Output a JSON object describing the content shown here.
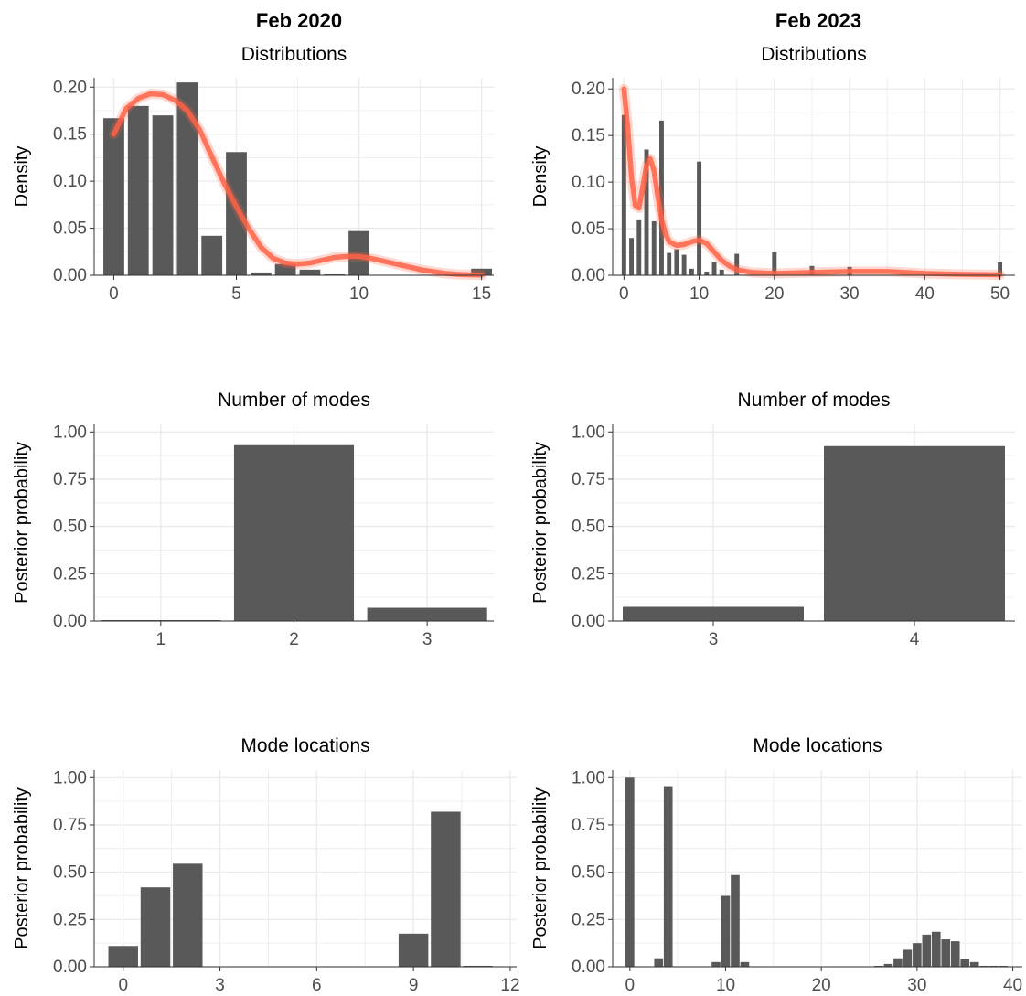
{
  "columns": [
    "Feb 2020",
    "Feb 2023"
  ],
  "colors": {
    "bar": "#595959",
    "curve": "#ff6347",
    "grid": "#ebebeb",
    "axis": "#333333"
  },
  "chart_data": [
    {
      "type": "bar",
      "title": "Distributions",
      "ylabel": "Density",
      "xlabel": "",
      "xlim": [
        -0.8,
        15.5
      ],
      "ylim": [
        0,
        0.21
      ],
      "xticks": [
        0,
        5,
        10,
        15
      ],
      "yticks": [
        0.0,
        0.05,
        0.1,
        0.15,
        0.2
      ],
      "ytick_labels": [
        "0.00",
        "0.05",
        "0.10",
        "0.15",
        "0.20"
      ],
      "bar_width": 0.85,
      "x": [
        0,
        1,
        2,
        3,
        4,
        5,
        6,
        7,
        8,
        9,
        10,
        15
      ],
      "values": [
        0.167,
        0.18,
        0.17,
        0.205,
        0.042,
        0.131,
        0.003,
        0.012,
        0.006,
        0.001,
        0.047,
        0.007
      ],
      "density_curve": {
        "style": "posterior draws (overlaid)",
        "x": [
          0,
          0.5,
          1,
          1.5,
          2,
          2.5,
          3,
          3.5,
          4,
          4.5,
          5,
          5.5,
          6,
          6.5,
          7,
          7.5,
          8,
          8.5,
          9,
          9.5,
          10,
          10.5,
          11,
          11.5,
          12,
          12.5,
          13,
          13.5,
          14,
          14.5,
          15
        ],
        "y": [
          0.15,
          0.177,
          0.188,
          0.193,
          0.192,
          0.186,
          0.175,
          0.155,
          0.126,
          0.098,
          0.073,
          0.05,
          0.03,
          0.018,
          0.013,
          0.012,
          0.013,
          0.016,
          0.019,
          0.02,
          0.02,
          0.018,
          0.015,
          0.012,
          0.009,
          0.006,
          0.004,
          0.002,
          0.001,
          0.0005,
          0.0002
        ]
      }
    },
    {
      "type": "bar",
      "title": "Distributions",
      "ylabel": "Density",
      "xlabel": "",
      "xlim": [
        -1.5,
        52
      ],
      "ylim": [
        0,
        0.212
      ],
      "xticks": [
        0,
        10,
        20,
        30,
        40,
        50
      ],
      "yticks": [
        0.0,
        0.05,
        0.1,
        0.15,
        0.2
      ],
      "ytick_labels": [
        "0.00",
        "0.05",
        "0.10",
        "0.15",
        "0.20"
      ],
      "bar_width": 0.6,
      "x": [
        0,
        1,
        2,
        3,
        4,
        5,
        6,
        7,
        8,
        9,
        10,
        11,
        12,
        13,
        15,
        20,
        25,
        30,
        50
      ],
      "values": [
        0.172,
        0.04,
        0.06,
        0.135,
        0.058,
        0.166,
        0.024,
        0.028,
        0.022,
        0.007,
        0.122,
        0.004,
        0.014,
        0.006,
        0.023,
        0.025,
        0.01,
        0.009,
        0.014
      ],
      "density_curve": {
        "style": "posterior draws (overlaid)",
        "x": [
          0,
          0.5,
          1,
          1.5,
          2,
          2.5,
          3,
          3.5,
          4,
          4.5,
          5,
          5.5,
          6,
          7,
          8,
          9,
          10,
          11,
          12,
          13,
          14,
          15,
          17,
          20,
          25,
          30,
          35,
          40,
          45,
          50
        ],
        "y": [
          0.2,
          0.16,
          0.105,
          0.075,
          0.072,
          0.095,
          0.118,
          0.125,
          0.112,
          0.085,
          0.06,
          0.045,
          0.036,
          0.032,
          0.033,
          0.036,
          0.038,
          0.034,
          0.025,
          0.016,
          0.01,
          0.006,
          0.003,
          0.002,
          0.003,
          0.004,
          0.004,
          0.002,
          0.001,
          0.0005
        ]
      }
    },
    {
      "type": "bar",
      "title": "Number of modes",
      "ylabel": "Posterior probability",
      "xlabel": "",
      "categories": [
        "1",
        "2",
        "3"
      ],
      "values": [
        0.002,
        0.93,
        0.07
      ],
      "ylim": [
        0,
        1.04
      ],
      "yticks": [
        0,
        0.25,
        0.5,
        0.75,
        1.0
      ],
      "ytick_labels": [
        "0.00",
        "0.25",
        "0.50",
        "0.75",
        "1.00"
      ]
    },
    {
      "type": "bar",
      "title": "Number of modes",
      "ylabel": "Posterior probability",
      "xlabel": "",
      "categories": [
        "3",
        "4"
      ],
      "values": [
        0.075,
        0.925
      ],
      "ylim": [
        0,
        1.04
      ],
      "yticks": [
        0,
        0.25,
        0.5,
        0.75,
        1.0
      ],
      "ytick_labels": [
        "0.00",
        "0.25",
        "0.50",
        "0.75",
        "1.00"
      ]
    },
    {
      "type": "bar",
      "title": "Mode locations",
      "ylabel": "Posterior probability",
      "xlabel": "",
      "xlim": [
        -0.9,
        12.2
      ],
      "ylim": [
        0,
        1.04
      ],
      "xticks": [
        0,
        3,
        6,
        9,
        12
      ],
      "yticks": [
        0,
        0.25,
        0.5,
        0.75,
        1.0
      ],
      "ytick_labels": [
        "0.00",
        "0.25",
        "0.50",
        "0.75",
        "1.00"
      ],
      "bar_width": 0.92,
      "x": [
        0,
        1,
        2,
        9,
        10,
        11
      ],
      "values": [
        0.11,
        0.42,
        0.545,
        0.175,
        0.82,
        0.005
      ]
    },
    {
      "type": "bar",
      "title": "Mode locations",
      "ylabel": "Posterior probability",
      "xlabel": "",
      "xlim": [
        -1.8,
        41
      ],
      "ylim": [
        0,
        1.04
      ],
      "xticks": [
        0,
        10,
        20,
        30,
        40
      ],
      "yticks": [
        0,
        0.25,
        0.5,
        0.75,
        1.0
      ],
      "ytick_labels": [
        "0.00",
        "0.25",
        "0.50",
        "0.75",
        "1.00"
      ],
      "bar_width": 0.92,
      "x": [
        0,
        3,
        4,
        9,
        10,
        11,
        12,
        26,
        27,
        28,
        29,
        30,
        31,
        32,
        33,
        34,
        35,
        36,
        37,
        38,
        39
      ],
      "values": [
        1.0,
        0.045,
        0.955,
        0.025,
        0.375,
        0.485,
        0.025,
        0.005,
        0.015,
        0.045,
        0.09,
        0.125,
        0.17,
        0.185,
        0.145,
        0.135,
        0.04,
        0.025,
        0.005,
        0.005,
        0.005
      ]
    }
  ]
}
